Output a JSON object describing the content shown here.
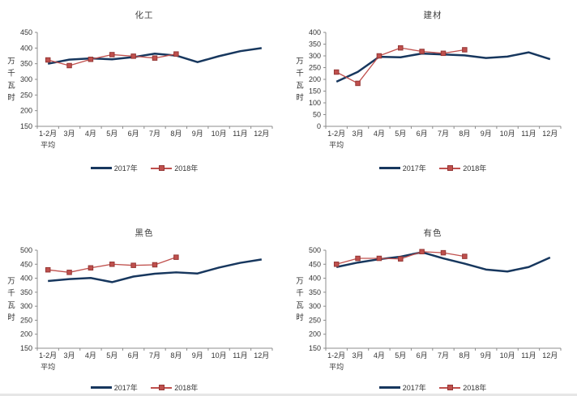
{
  "page": {
    "background": "#ffffff"
  },
  "colors": {
    "axis": "#8c8c8c",
    "tick_text": "#333333",
    "title_text": "#404040",
    "series_2017": "#17375E",
    "series_2018": "#C0504D",
    "marker_border": "#953735"
  },
  "chart_data": [
    {
      "type": "line",
      "title": "化工",
      "ylabel": "万千瓦时",
      "ylim": [
        150,
        450
      ],
      "ystep": 50,
      "grid": false,
      "legend_position": "bottom",
      "categories": [
        "1-2月",
        "3月",
        "4月",
        "5月",
        "6月",
        "7月",
        "8月",
        "9月",
        "10月",
        "11月",
        "12月"
      ],
      "category_sublabel": "平均",
      "series": [
        {
          "name": "2017年",
          "color": "#17375E",
          "marker": "none",
          "values": [
            350,
            363,
            367,
            364,
            371,
            382,
            376,
            355,
            374,
            390,
            400
          ]
        },
        {
          "name": "2018年",
          "color": "#C0504D",
          "marker": "square",
          "values": [
            362,
            344,
            364,
            379,
            374,
            368,
            381
          ]
        }
      ]
    },
    {
      "type": "line",
      "title": "建材",
      "ylabel": "万千瓦时",
      "ylim": [
        0,
        400
      ],
      "ystep": 50,
      "grid": false,
      "legend_position": "bottom",
      "categories": [
        "1-2月",
        "3月",
        "4月",
        "5月",
        "6月",
        "7月",
        "8月",
        "9月",
        "10月",
        "11月",
        "12月"
      ],
      "category_sublabel": "平均",
      "series": [
        {
          "name": "2017年",
          "color": "#17375E",
          "marker": "none",
          "values": [
            190,
            232,
            296,
            294,
            310,
            306,
            302,
            291,
            297,
            315,
            286
          ]
        },
        {
          "name": "2018年",
          "color": "#C0504D",
          "marker": "square",
          "values": [
            231,
            183,
            300,
            334,
            319,
            311,
            326
          ]
        }
      ]
    },
    {
      "type": "line",
      "title": "黑色",
      "ylabel": "万千瓦时",
      "ylim": [
        150,
        500
      ],
      "ystep": 50,
      "grid": false,
      "legend_position": "bottom",
      "categories": [
        "1-2月",
        "3月",
        "4月",
        "5月",
        "6月",
        "7月",
        "8月",
        "9月",
        "10月",
        "11月",
        "12月"
      ],
      "category_sublabel": "平均",
      "series": [
        {
          "name": "2017年",
          "color": "#17375E",
          "marker": "none",
          "values": [
            390,
            397,
            401,
            386,
            406,
            416,
            421,
            417,
            438,
            455,
            467
          ]
        },
        {
          "name": "2018年",
          "color": "#C0504D",
          "marker": "square",
          "values": [
            430,
            421,
            437,
            450,
            446,
            448,
            475
          ]
        }
      ]
    },
    {
      "type": "line",
      "title": "有色",
      "ylabel": "万千瓦时",
      "ylim": [
        150,
        500
      ],
      "ystep": 50,
      "grid": false,
      "legend_position": "bottom",
      "categories": [
        "1-2月",
        "3月",
        "4月",
        "5月",
        "6月",
        "7月",
        "8月",
        "9月",
        "10月",
        "11月",
        "12月"
      ],
      "category_sublabel": "平均",
      "series": [
        {
          "name": "2017年",
          "color": "#17375E",
          "marker": "none",
          "values": [
            440,
            456,
            468,
            477,
            493,
            471,
            452,
            431,
            424,
            440,
            474
          ]
        },
        {
          "name": "2018年",
          "color": "#C0504D",
          "marker": "square",
          "values": [
            450,
            471,
            471,
            469,
            495,
            491,
            478
          ]
        }
      ]
    }
  ]
}
